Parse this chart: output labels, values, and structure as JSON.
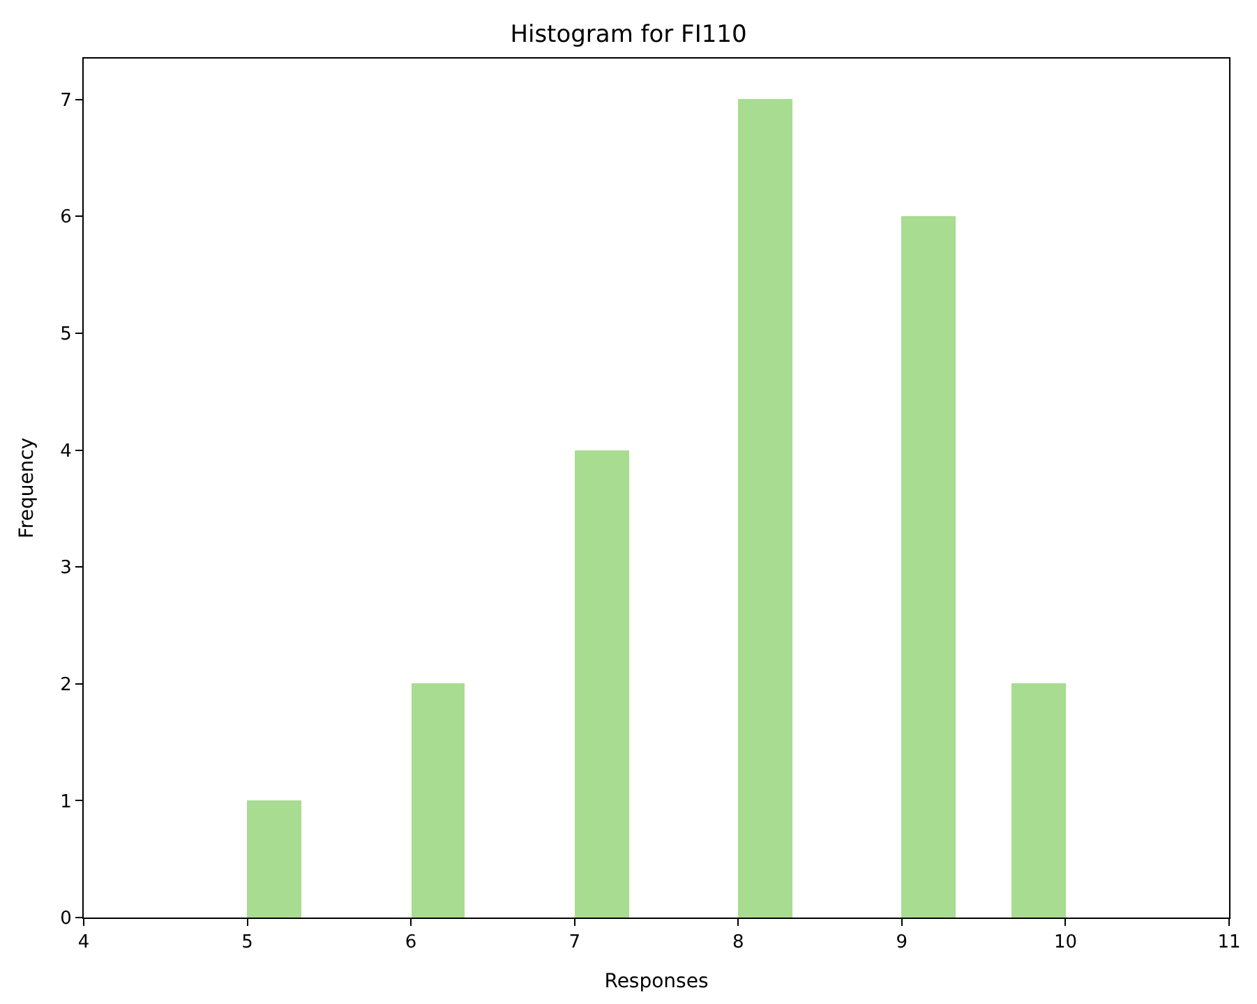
{
  "chart_data": {
    "type": "histogram",
    "title": "Histogram for FI110",
    "xlabel": "Responses",
    "ylabel": "Frequency",
    "bins": [
      5,
      5.33,
      6,
      6.33,
      7,
      7.33,
      8,
      8.33,
      9,
      9.33,
      9.67,
      10
    ],
    "values": [
      1,
      0,
      2,
      0,
      4,
      0,
      7,
      0,
      6,
      0,
      2
    ],
    "color": "#a8dc90",
    "xlim": [
      4,
      11
    ],
    "xticks": [
      4,
      5,
      6,
      7,
      8,
      9,
      10,
      11
    ],
    "ylim": [
      0,
      7.35
    ],
    "yticks": [
      0,
      1,
      2,
      3,
      4,
      5,
      6,
      7
    ]
  }
}
